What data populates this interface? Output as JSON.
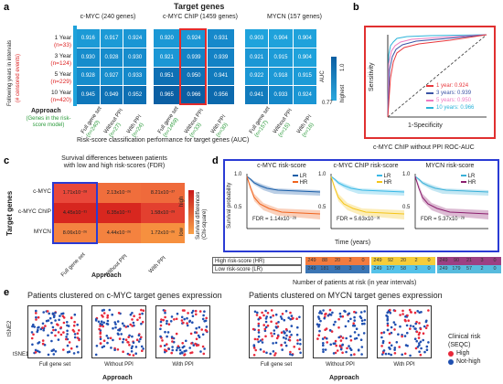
{
  "panel_a": {
    "label": "a",
    "title": "Target genes",
    "group_titles": [
      "c-MYC (240 genes)",
      "c-MYC ChIP (1459 genes)",
      "MYCN (157 genes)"
    ],
    "side_label": "Following years in intervals",
    "side_sublabel": "(# censored events)",
    "rows": [
      {
        "year": "1 Year",
        "n": "(n=33)"
      },
      {
        "year": "3 Year",
        "n": "(n=124)"
      },
      {
        "year": "5 Year",
        "n": "(n=229)"
      },
      {
        "year": "10 Year",
        "n": "(n=420)"
      }
    ],
    "approach_label": "Approach",
    "approach_sublabel": "(Genes in the risk-score model)",
    "columns": [
      {
        "name": "Full gene set",
        "n": "(n=240)"
      },
      {
        "name": "Without PPI",
        "n": "(n=27)"
      },
      {
        "name": "With PPI",
        "n": "(n=24)"
      },
      {
        "name": "Full gene set",
        "n": "(n=1459)"
      },
      {
        "name": "Without PPI",
        "n": "(n=33)"
      },
      {
        "name": "With PPI",
        "n": "(n=30)"
      },
      {
        "name": "Full gene set",
        "n": "(n=157)"
      },
      {
        "name": "Without PPI",
        "n": "(n=15)"
      },
      {
        "name": "With PPI",
        "n": "(n=16)"
      }
    ],
    "auc_label": "AUC",
    "scale_low": "0.77",
    "scale_high": "1.0",
    "scale_high_word": "highest",
    "caption": "Risk-score classification performance for target genes (AUC)",
    "heatmaps": [
      {
        "values": [
          [
            "0.916",
            "0.917",
            "0.924"
          ],
          [
            "0.930",
            "0.928",
            "0.930"
          ],
          [
            "0.928",
            "0.927",
            "0.933"
          ],
          [
            "0.945",
            "0.949",
            "0.952"
          ]
        ],
        "colors": [
          [
            "#1c9ad6",
            "#1c9ad6",
            "#1a96d4"
          ],
          [
            "#168ccc",
            "#168ccc",
            "#168ccc"
          ],
          [
            "#168ccc",
            "#178ecd",
            "#1589ca"
          ],
          [
            "#0f77ba",
            "#0e72b6",
            "#0d6fb3"
          ]
        ]
      },
      {
        "values": [
          [
            "0.920",
            "0.924",
            "0.931"
          ],
          [
            "0.921",
            "0.939",
            "0.939"
          ],
          [
            "0.951",
            "0.950",
            "0.941"
          ],
          [
            "0.965",
            "0.966",
            "0.956"
          ]
        ],
        "colors": [
          [
            "#1b98d5",
            "#1a96d4",
            "#1689cb"
          ],
          [
            "#1b97d5",
            "#1382c5",
            "#1382c5"
          ],
          [
            "#0e70b4",
            "#0e71b5",
            "#117bbd"
          ],
          [
            "#0b5fa3",
            "#0b5ea2",
            "#0c69ad"
          ]
        ]
      },
      {
        "values": [
          [
            "0.903",
            "0.904",
            "0.904"
          ],
          [
            "0.921",
            "0.915",
            "0.904"
          ],
          [
            "0.922",
            "0.918",
            "0.915"
          ],
          [
            "0.941",
            "0.933",
            "0.924"
          ]
        ],
        "colors": [
          [
            "#1fa3dc",
            "#1fa2db",
            "#1fa2db"
          ],
          [
            "#1b97d5",
            "#1c9bd7",
            "#1fa2db"
          ],
          [
            "#1b97d5",
            "#1c99d6",
            "#1c9bd7"
          ],
          [
            "#117bbd",
            "#1588c9",
            "#1a96d4"
          ]
        ]
      }
    ]
  },
  "panel_b": {
    "label": "b",
    "x_axis": "1-Specificity",
    "y_axis": "Sensitivity",
    "caption": "c-MYC ChIP without PPI ROC-AUC",
    "legend": [
      {
        "text": "1 year: 0.924",
        "color": "#e8383d"
      },
      {
        "text": "3 years: 0.939",
        "color": "#3a53a4"
      },
      {
        "text": "5 years: 0.950",
        "color": "#ee7ac0"
      },
      {
        "text": "10 years: 0.966",
        "color": "#2bb3d9"
      }
    ]
  },
  "panel_c": {
    "label": "c",
    "title_line1": "Survival differences between patients",
    "title_line2": "with low and high risk-scores (FDR)",
    "target_label": "Target genes",
    "rows": [
      "c-MYC",
      "c-MYC ChIP",
      "MYCN"
    ],
    "cols": [
      "Full gene set",
      "Without PPI",
      "With PPI"
    ],
    "approach_label": "Approach",
    "side_label": "Survival differences (Chi-square)",
    "scale_low": "low",
    "scale_high": "high",
    "values": [
      [
        "1.71x10⁻²⁸",
        "2.13x10⁻²⁶",
        "8.21x10⁻²⁷"
      ],
      [
        "4.45x10⁻³¹",
        "6.35x10⁻³¹",
        "1.58x10⁻²⁹"
      ],
      [
        "8.06x10⁻²⁶",
        "4.44x10⁻²⁶",
        "1.72x10⁻²⁶"
      ]
    ],
    "colors": [
      [
        "#e9483a",
        "#f06e3c",
        "#ef6a3b"
      ],
      [
        "#d7261f",
        "#d8271f",
        "#e3402f"
      ],
      [
        "#f48341",
        "#f4823f",
        "#f6903f"
      ]
    ]
  },
  "panel_d": {
    "label": "d",
    "plots": [
      {
        "title": "c-MYC risk-score",
        "fdr": "FDR = 1.14x10⁻²⁸",
        "lr_color": "#1a5ea8",
        "hr_color": "#f0641e"
      },
      {
        "title": "c-MYC ChIP risk-score",
        "fdr": "FDR = 5.63x10⁻³¹",
        "lr_color": "#38b8e6",
        "hr_color": "#f5c518"
      },
      {
        "title": "MYCN risk-score",
        "fdr": "FDR = 5.37x10⁻²⁸",
        "lr_color": "#3ab0d8",
        "hr_color": "#8b1f6e"
      }
    ],
    "lr_label": "LR",
    "hr_label": "HR",
    "y_axis": "Survival probability",
    "x_axis": "Time (years)",
    "x_ticks": [
      "0",
      "5",
      "10",
      "15",
      "20"
    ],
    "y_ticks": [
      "0.5",
      "1.0"
    ],
    "risk_high_label": "High risk-score (HR)",
    "risk_low_label": "Low risk-score (LR)",
    "risk_table": [
      {
        "hr": [
          "249",
          "88",
          "20",
          "2",
          "0"
        ],
        "lr": [
          "249",
          "181",
          "58",
          "3",
          "0"
        ]
      },
      {
        "hr": [
          "249",
          "92",
          "20",
          "2",
          "0"
        ],
        "lr": [
          "249",
          "177",
          "58",
          "3",
          "0"
        ]
      },
      {
        "hr": [
          "249",
          "90",
          "21",
          "3",
          "0"
        ],
        "lr": [
          "249",
          "179",
          "57",
          "2",
          "0"
        ]
      }
    ],
    "risk_caption": "Number of patients at risk (in year intervals)"
  },
  "panel_e": {
    "label": "e",
    "title_left": "Patients clustered on c-MYC target genes expression",
    "title_right": "Patients clustered on MYCN target genes expression",
    "sub_labels": [
      "Full gene set",
      "Without PPI",
      "With PPI",
      "Full gene set",
      "Without PPI",
      "With PPI"
    ],
    "approach_label": "Approach",
    "tsne1": "tSNE1",
    "tsne2": "tSNE2",
    "legend_title": "Clinical risk (SEQC)",
    "legend": [
      {
        "text": "High",
        "color": "#e8283a"
      },
      {
        "text": "Not-high",
        "color": "#1f4fb0"
      }
    ]
  }
}
